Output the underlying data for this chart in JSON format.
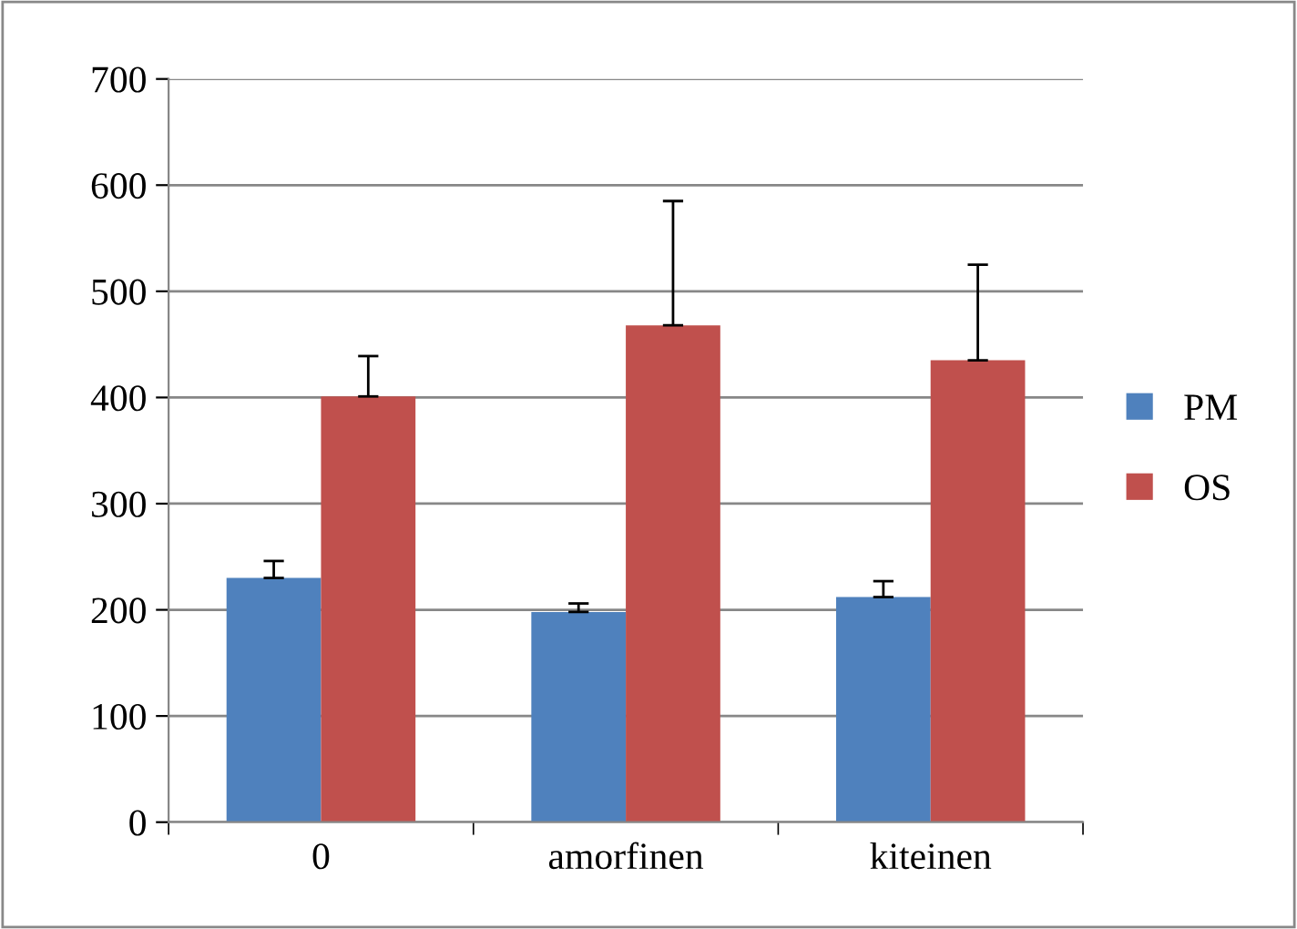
{
  "chart_data": {
    "type": "bar",
    "categories": [
      "0",
      "amorfinen",
      "kiteinen"
    ],
    "series": [
      {
        "name": "PM",
        "color": "#4f81bd",
        "values": [
          230,
          198,
          212
        ],
        "errors": [
          [
            230,
            246
          ],
          [
            198,
            206
          ],
          [
            212,
            227
          ]
        ]
      },
      {
        "name": "OS",
        "color": "#c0504d",
        "values": [
          401,
          468,
          435
        ],
        "errors": [
          [
            401,
            439
          ],
          [
            468,
            585
          ],
          [
            435,
            525
          ]
        ]
      }
    ],
    "ylim": [
      0,
      700
    ],
    "yticks": [
      0,
      100,
      200,
      300,
      400,
      500,
      600,
      700
    ],
    "grid": "y",
    "legend": "right"
  }
}
